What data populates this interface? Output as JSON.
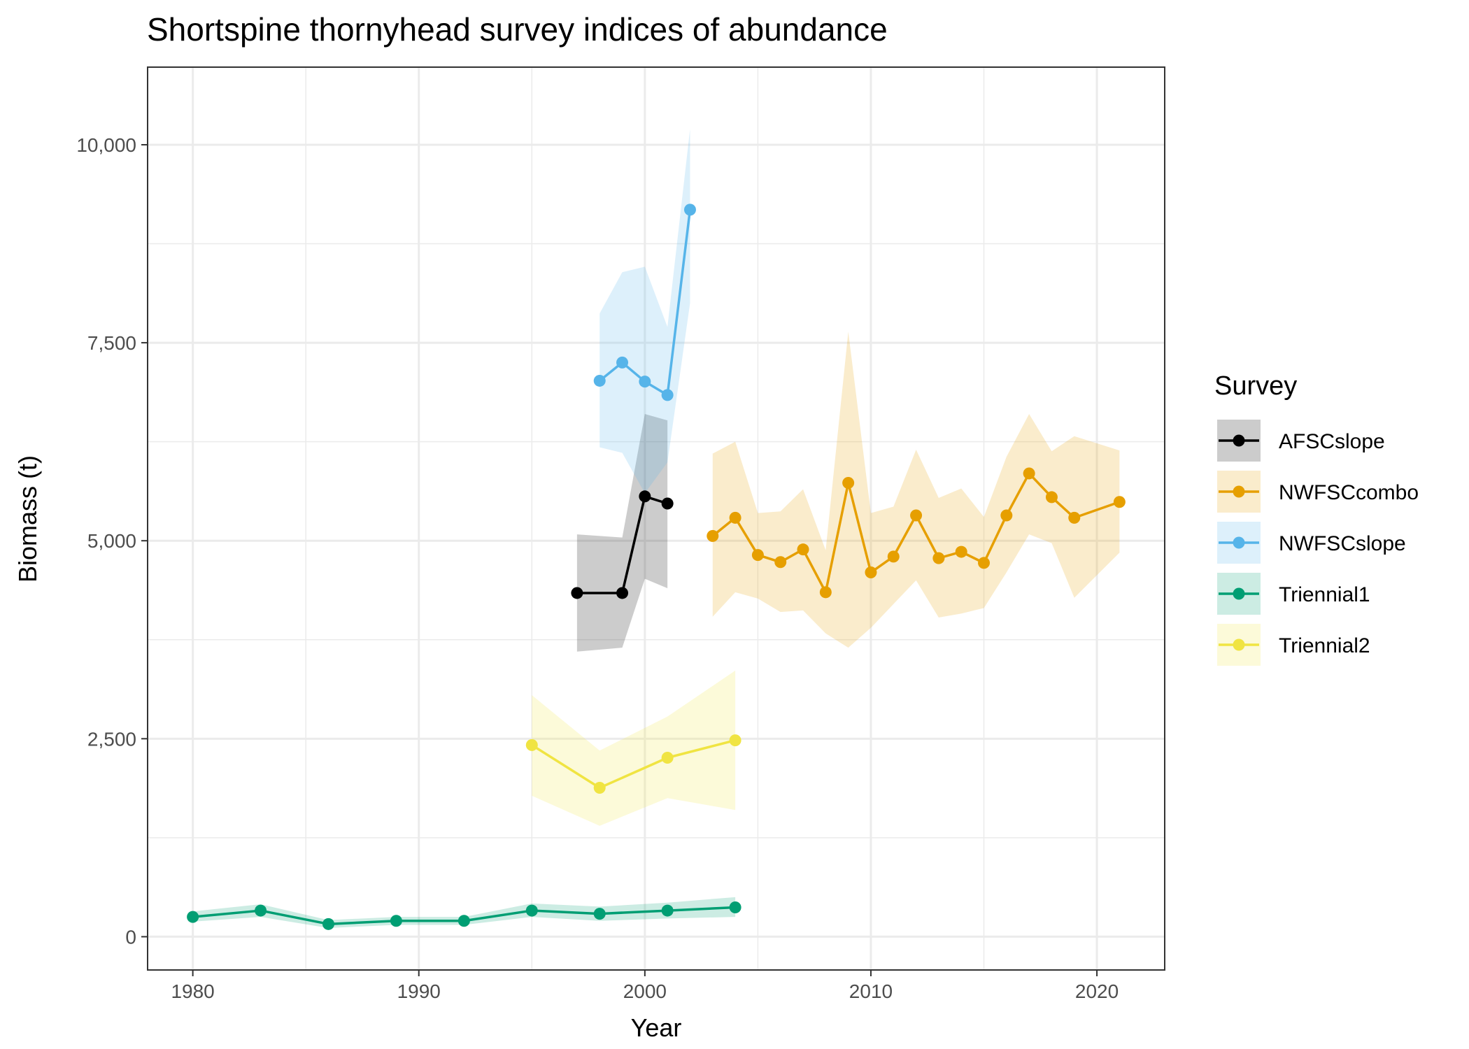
{
  "chart_data": {
    "type": "line",
    "title": "Shortspine thornyhead survey indices of abundance",
    "xlabel": "Year",
    "ylabel": "Biomass (t)",
    "xlim": [
      1978,
      2023
    ],
    "ylim": [
      -420,
      10980
    ],
    "x_ticks": [
      {
        "value": 1980,
        "label": "1980"
      },
      {
        "value": 1990,
        "label": "1990"
      },
      {
        "value": 2000,
        "label": "2000"
      },
      {
        "value": 2010,
        "label": "2010"
      },
      {
        "value": 2020,
        "label": "2020"
      }
    ],
    "y_ticks": [
      {
        "value": 0,
        "label": "0"
      },
      {
        "value": 2500,
        "label": "2,500"
      },
      {
        "value": 5000,
        "label": "5,000"
      },
      {
        "value": 7500,
        "label": "7,500"
      },
      {
        "value": 10000,
        "label": "10,000"
      }
    ],
    "grid": true,
    "legend": {
      "title": "Survey",
      "position": "right"
    },
    "series": [
      {
        "name": "AFSCslope",
        "color": "#000000",
        "ribbon_color": "#000000",
        "ribbon_opacity": 0.2,
        "x": [
          1997,
          1999,
          2000,
          2001
        ],
        "y": [
          4340,
          4340,
          5560,
          5470
        ],
        "lower": [
          3600,
          3650,
          4520,
          4400
        ],
        "upper": [
          5080,
          5040,
          6600,
          6520
        ]
      },
      {
        "name": "NWFSCcombo",
        "color": "#E69F00",
        "ribbon_color": "#E69F00",
        "ribbon_opacity": 0.2,
        "x": [
          2003,
          2004,
          2005,
          2006,
          2007,
          2008,
          2009,
          2010,
          2011,
          2012,
          2013,
          2014,
          2015,
          2016,
          2017,
          2018,
          2019,
          2021
        ],
        "y": [
          5060,
          5290,
          4820,
          4730,
          4890,
          4350,
          5730,
          4600,
          4800,
          5320,
          4780,
          4860,
          4720,
          5320,
          5850,
          5550,
          5290,
          5490
        ],
        "lower": [
          4040,
          4350,
          4270,
          4100,
          4120,
          3830,
          3650,
          3900,
          4200,
          4500,
          4030,
          4080,
          4150,
          4600,
          5080,
          4970,
          4280,
          4850
        ],
        "upper": [
          6100,
          6250,
          5350,
          5370,
          5650,
          4880,
          7640,
          5350,
          5430,
          6150,
          5540,
          5660,
          5300,
          6060,
          6600,
          6130,
          6320,
          6140
        ]
      },
      {
        "name": "NWFSCslope",
        "color": "#56B4E9",
        "ribbon_color": "#56B4E9",
        "ribbon_opacity": 0.2,
        "x": [
          1998,
          1999,
          2000,
          2001,
          2002
        ],
        "y": [
          7020,
          7250,
          7010,
          6840,
          9180
        ],
        "lower": [
          6180,
          6110,
          5600,
          5990,
          8000
        ],
        "upper": [
          7870,
          8390,
          8460,
          7700,
          10200
        ]
      },
      {
        "name": "Triennial1",
        "color": "#009E73",
        "ribbon_color": "#009E73",
        "ribbon_opacity": 0.2,
        "x": [
          1980,
          1983,
          1986,
          1989,
          1992,
          1995,
          1998,
          2001,
          2004
        ],
        "y": [
          250,
          330,
          160,
          200,
          200,
          330,
          290,
          330,
          370
        ],
        "lower": [
          190,
          250,
          110,
          150,
          150,
          250,
          200,
          230,
          250
        ],
        "upper": [
          320,
          410,
          210,
          250,
          250,
          420,
          380,
          430,
          500
        ]
      },
      {
        "name": "Triennial2",
        "color": "#F0E442",
        "ribbon_color": "#F0E442",
        "ribbon_opacity": 0.2,
        "x": [
          1995,
          1998,
          2001,
          2004
        ],
        "y": [
          2420,
          1880,
          2260,
          2480
        ],
        "lower": [
          1780,
          1400,
          1750,
          1600
        ],
        "upper": [
          3050,
          2350,
          2780,
          3360
        ]
      }
    ]
  }
}
